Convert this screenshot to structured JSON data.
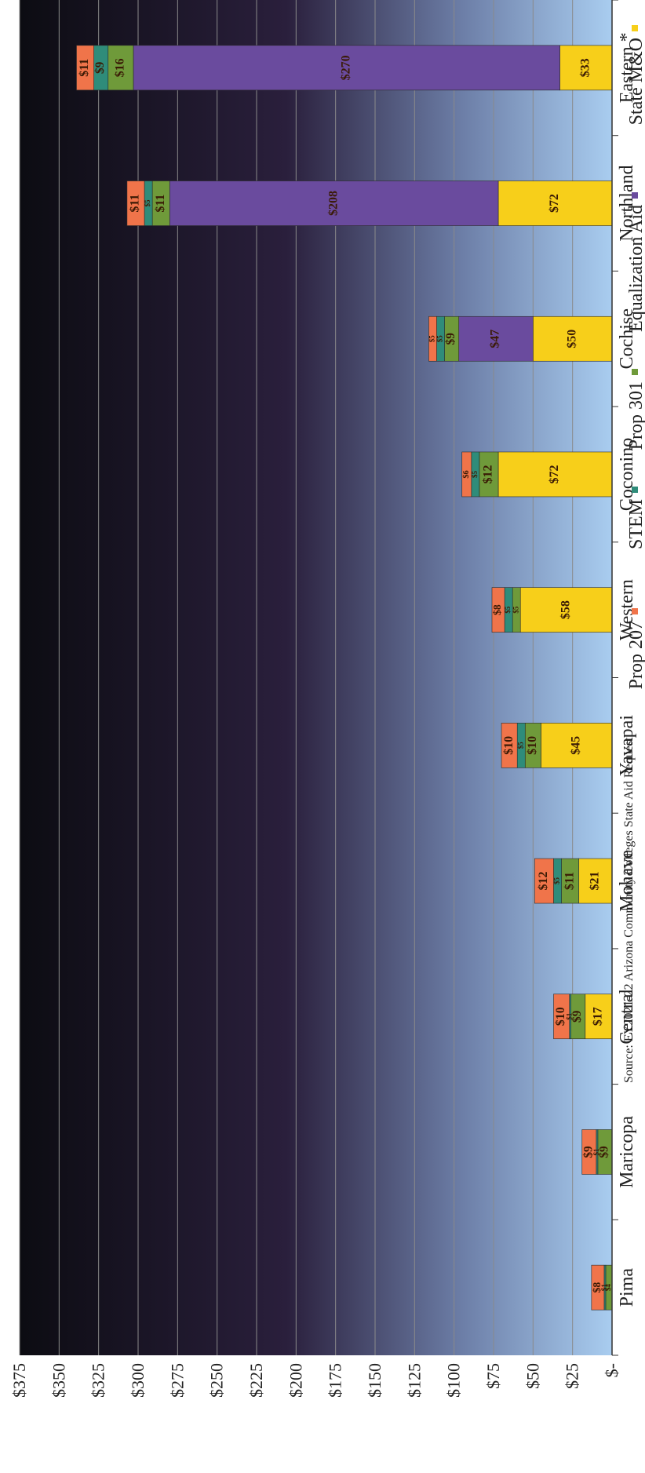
{
  "chart_data": {
    "type": "bar",
    "stacked": true,
    "title": "",
    "xlabel": "",
    "ylabel": "",
    "ylim": [
      0,
      375
    ],
    "y_ticks": [
      "$-",
      "$25",
      "$50",
      "$75",
      "$100",
      "$125",
      "$150",
      "$175",
      "$200",
      "$225",
      "$250",
      "$275",
      "$300",
      "$325",
      "$350",
      "$375"
    ],
    "categories": [
      "Eastern *",
      "Northland",
      "Cochise",
      "Coconino",
      "Western",
      "Yavapai",
      "Mohave",
      "Central",
      "Maricopa",
      "Pima"
    ],
    "series": [
      {
        "name": "State M&O",
        "color": "#f7cf1a",
        "values": [
          33,
          72,
          50,
          72,
          58,
          45,
          21,
          17,
          0,
          0
        ],
        "labels": [
          "$33",
          "$72",
          "$50",
          "$72",
          "$58",
          "$45",
          "$21",
          "$17",
          "",
          ""
        ]
      },
      {
        "name": "Equalization Aid",
        "color": "#6a4b9e",
        "values": [
          270,
          208,
          47,
          0,
          0,
          0,
          0,
          0,
          0,
          0
        ],
        "labels": [
          "$270",
          "$208",
          "$47",
          "",
          "",
          "",
          "",
          "",
          "",
          ""
        ]
      },
      {
        "name": "Prop 301",
        "color": "#6f9a3a",
        "values": [
          16,
          11,
          9,
          12,
          5,
          10,
          11,
          9,
          9,
          4
        ],
        "labels": [
          "$16",
          "$11",
          "$9",
          "$12",
          "$5",
          "$10",
          "$11",
          "$9",
          "$9",
          "$4"
        ]
      },
      {
        "name": "STEM",
        "color": "#2f8c7a",
        "values": [
          9,
          5,
          5,
          5,
          5,
          5,
          5,
          1,
          1,
          1
        ],
        "labels": [
          "$9",
          "$5",
          "$5",
          "$5",
          "$5",
          "$5",
          "$5",
          "$1",
          "$1",
          "$1"
        ]
      },
      {
        "name": "Prop 207",
        "color": "#f0744a",
        "values": [
          11,
          11,
          5,
          6,
          8,
          10,
          12,
          10,
          9,
          8
        ],
        "labels": [
          "$11",
          "$11",
          "$5",
          "$6",
          "$8",
          "$10",
          "$12",
          "$10",
          "$9",
          "$8"
        ]
      }
    ],
    "legend": {
      "placement": "bottom",
      "items": [
        "State M&O",
        "Equalization Aid",
        "Prop 301",
        "STEM",
        "Prop 207"
      ]
    },
    "source": "Source: FY2021-22 Arizona Community Colleges State Aid Request.",
    "grid": true
  }
}
